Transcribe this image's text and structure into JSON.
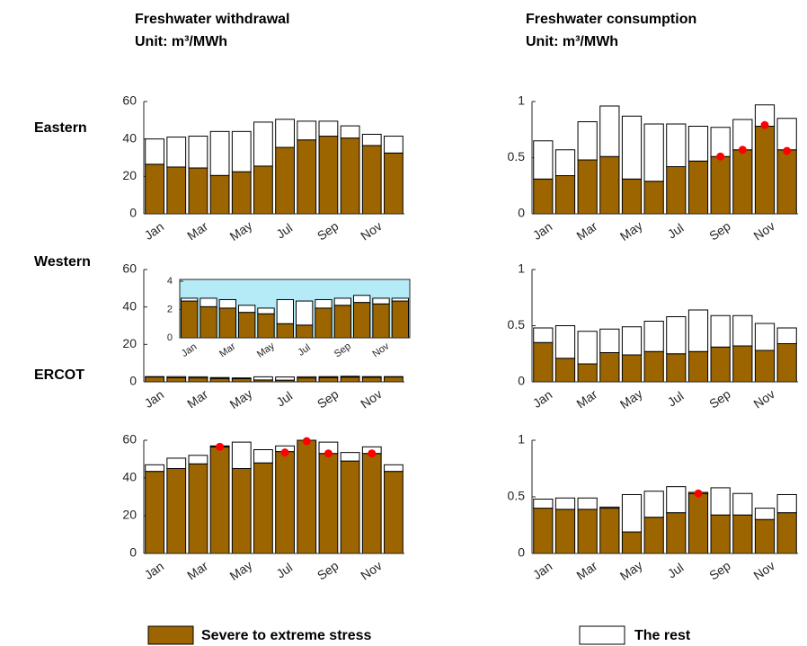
{
  "column_titles": [
    {
      "title": "Freshwater withdrawal",
      "subtitle": "Unit: m³/MWh"
    },
    {
      "title": "Freshwater consumption",
      "subtitle": "Unit: m³/MWh"
    }
  ],
  "row_labels": [
    "Eastern",
    "Western",
    "ERCOT"
  ],
  "chart_data": [
    {
      "type": "bar",
      "stacked": true,
      "categories": [
        "Jan",
        null,
        "Mar",
        null,
        "May",
        null,
        "Jul",
        null,
        "Sep",
        null,
        "Nov",
        null
      ],
      "series": [
        {
          "name": "Severe to extreme stress",
          "color": "#9c6500",
          "values": [
            26.5,
            25,
            24.5,
            20.5,
            22.5,
            25.5,
            35.5,
            39.5,
            41.5,
            40.5,
            36.5,
            32.5
          ]
        },
        {
          "name": "The rest",
          "color": "#ffffff",
          "values": [
            13.5,
            16,
            17,
            23.5,
            21.5,
            23.5,
            15,
            10,
            8,
            6.5,
            6,
            9
          ]
        }
      ],
      "ylim": [
        0,
        60
      ],
      "yticks": [
        0,
        20,
        40,
        60
      ]
    },
    {
      "type": "bar",
      "stacked": true,
      "categories": [
        "Jan",
        null,
        "Mar",
        null,
        "May",
        null,
        "Jul",
        null,
        "Sep",
        null,
        "Nov",
        null
      ],
      "series": [
        {
          "name": "Severe to extreme stress",
          "color": "#9c6500",
          "values": [
            0.31,
            0.34,
            0.48,
            0.51,
            0.31,
            0.29,
            0.42,
            0.47,
            0.51,
            0.57,
            0.78,
            0.57
          ]
        },
        {
          "name": "The rest",
          "color": "#ffffff",
          "values": [
            0.34,
            0.23,
            0.34,
            0.45,
            0.56,
            0.51,
            0.38,
            0.31,
            0.26,
            0.27,
            0.19,
            0.28
          ]
        }
      ],
      "markers": {
        "color": "#ff0000",
        "values": [
          null,
          null,
          null,
          null,
          null,
          null,
          null,
          null,
          0.51,
          0.57,
          0.79,
          0.56
        ]
      },
      "ylim": [
        0,
        1
      ],
      "yticks": [
        0,
        0.5,
        1
      ]
    },
    {
      "type": "bar",
      "stacked": true,
      "categories": [
        "Jan",
        null,
        "Mar",
        null,
        "May",
        null,
        "Jul",
        null,
        "Sep",
        null,
        "Nov",
        null
      ],
      "series": [
        {
          "name": "Severe to extreme stress",
          "color": "#9c6500",
          "values": [
            2.6,
            2.2,
            2.1,
            1.8,
            1.7,
            1.0,
            0.9,
            2.1,
            2.3,
            2.5,
            2.4,
            2.6
          ]
        },
        {
          "name": "The rest",
          "color": "#ffffff",
          "values": [
            0.2,
            0.6,
            0.6,
            0.5,
            0.4,
            1.7,
            1.7,
            0.6,
            0.5,
            0.5,
            0.4,
            0.2
          ]
        }
      ],
      "ylim": [
        0,
        60
      ],
      "yticks": [
        0,
        20,
        40,
        60
      ],
      "inset": {
        "ylim": [
          0,
          4
        ],
        "yticks": [
          0,
          2,
          4
        ],
        "background": "#b5ebf7"
      }
    },
    {
      "type": "bar",
      "stacked": true,
      "categories": [
        "Jan",
        null,
        "Mar",
        null,
        "May",
        null,
        "Jul",
        null,
        "Sep",
        null,
        "Nov",
        null
      ],
      "series": [
        {
          "name": "Severe to extreme stress",
          "color": "#9c6500",
          "values": [
            0.35,
            0.21,
            0.16,
            0.26,
            0.24,
            0.27,
            0.25,
            0.27,
            0.31,
            0.32,
            0.28,
            0.34
          ]
        },
        {
          "name": "The rest",
          "color": "#ffffff",
          "values": [
            0.13,
            0.29,
            0.29,
            0.21,
            0.25,
            0.27,
            0.33,
            0.37,
            0.28,
            0.27,
            0.24,
            0.14
          ]
        }
      ],
      "ylim": [
        0,
        1
      ],
      "yticks": [
        0,
        0.5,
        1
      ]
    },
    {
      "type": "bar",
      "stacked": true,
      "categories": [
        "Jan",
        null,
        "Mar",
        null,
        "May",
        null,
        "Jul",
        null,
        "Sep",
        null,
        "Nov",
        null
      ],
      "series": [
        {
          "name": "Severe to extreme stress",
          "color": "#9c6500",
          "values": [
            43.5,
            45,
            47.5,
            56.5,
            45,
            48,
            54,
            60,
            53,
            49,
            53,
            43.5
          ]
        },
        {
          "name": "The rest",
          "color": "#ffffff",
          "values": [
            3.5,
            5.5,
            4.5,
            0.5,
            14,
            7,
            3,
            0,
            6,
            4.5,
            3.5,
            3.5
          ]
        }
      ],
      "markers": {
        "color": "#ff0000",
        "values": [
          null,
          null,
          null,
          56.5,
          null,
          null,
          53.5,
          59.5,
          53,
          null,
          53,
          null
        ]
      },
      "ylim": [
        0,
        60
      ],
      "yticks": [
        0,
        20,
        40,
        60
      ]
    },
    {
      "type": "bar",
      "stacked": true,
      "categories": [
        "Jan",
        null,
        "Mar",
        null,
        "May",
        null,
        "Jul",
        null,
        "Sep",
        null,
        "Nov",
        null
      ],
      "series": [
        {
          "name": "Severe to extreme stress",
          "color": "#9c6500",
          "values": [
            0.4,
            0.39,
            0.39,
            0.4,
            0.19,
            0.32,
            0.36,
            0.53,
            0.34,
            0.34,
            0.3,
            0.36
          ]
        },
        {
          "name": "The rest",
          "color": "#ffffff",
          "values": [
            0.08,
            0.1,
            0.1,
            0.01,
            0.33,
            0.23,
            0.23,
            0.01,
            0.24,
            0.19,
            0.1,
            0.16
          ]
        }
      ],
      "markers": {
        "color": "#ff0000",
        "values": [
          null,
          null,
          null,
          null,
          null,
          null,
          null,
          0.53,
          null,
          null,
          null,
          null
        ]
      },
      "ylim": [
        0,
        1
      ],
      "yticks": [
        0,
        0.5,
        1
      ]
    }
  ]
}
